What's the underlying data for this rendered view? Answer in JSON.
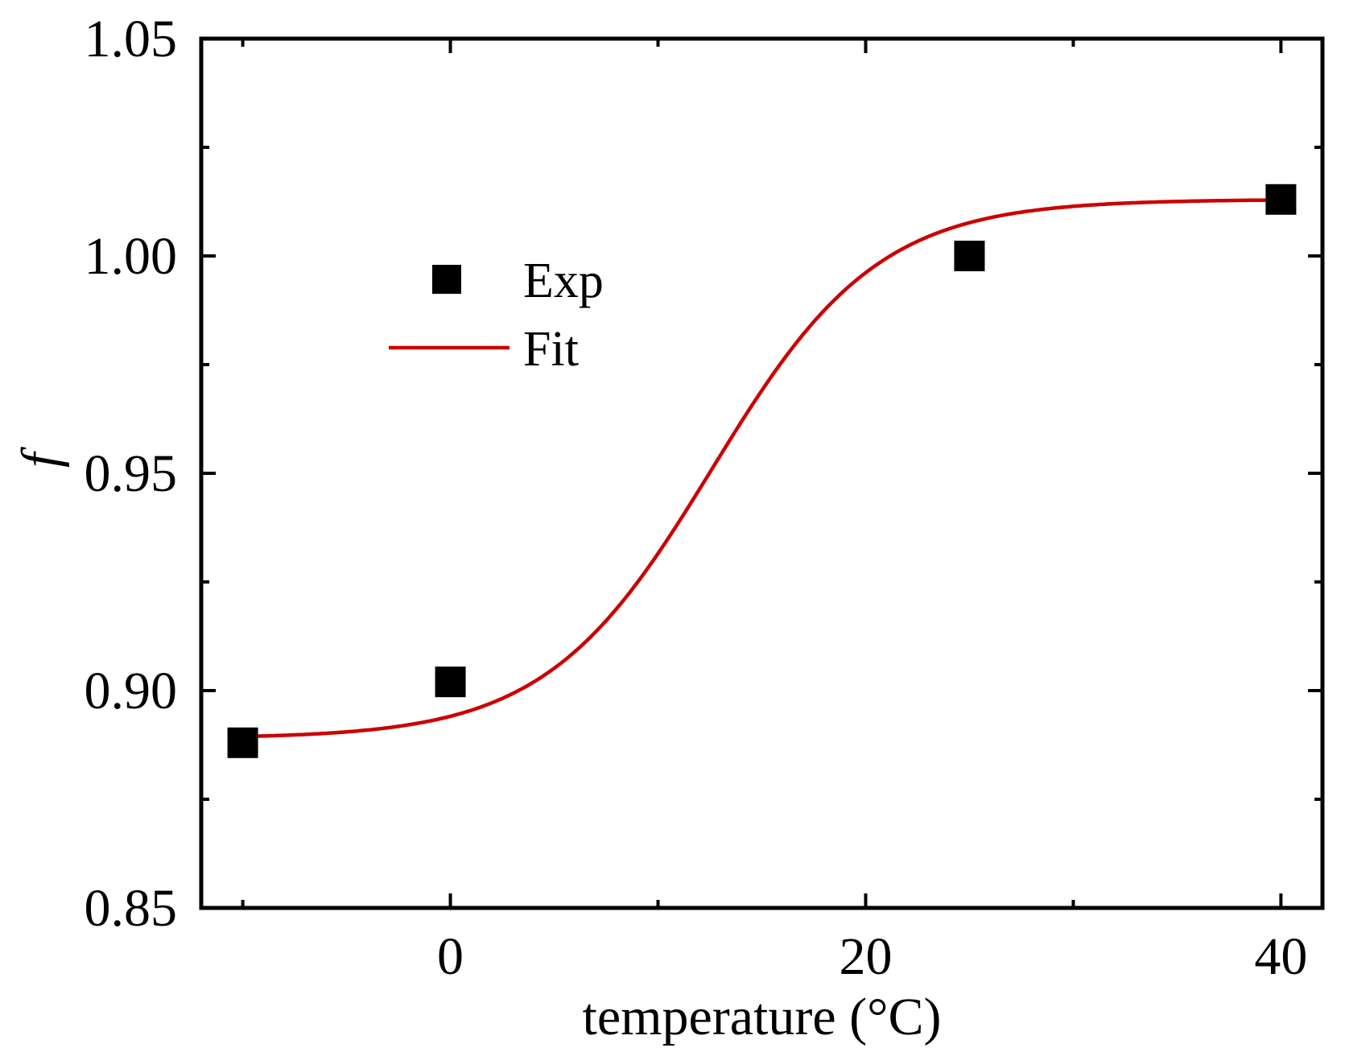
{
  "chart_data": {
    "type": "scatter",
    "title": "",
    "xlabel": "temperature (°C)",
    "ylabel": "f",
    "xlim": [
      -12,
      42
    ],
    "ylim": [
      0.85,
      1.05
    ],
    "x_major_ticks": [
      0,
      20,
      40
    ],
    "x_tick_labels": [
      "0",
      "20",
      "40"
    ],
    "x_minor_ticks": [
      -10,
      10,
      30
    ],
    "y_major_ticks": [
      0.85,
      0.9,
      0.95,
      1.0,
      1.05
    ],
    "y_tick_labels": [
      "0.85",
      "0.90",
      "0.95",
      "1.00",
      "1.05"
    ],
    "y_minor_ticks": [
      0.875,
      0.925,
      0.975,
      1.025
    ],
    "grid": false,
    "legend_position": "upper-left",
    "series": [
      {
        "name": "Exp",
        "kind": "markers",
        "marker": "square",
        "color": "#000000",
        "x": [
          -10,
          0,
          25,
          40
        ],
        "y": [
          0.888,
          0.902,
          1.0,
          1.013
        ]
      },
      {
        "name": "Fit",
        "kind": "line",
        "color": "#cc0000",
        "model": "sigmoid",
        "params": {
          "bottom": 0.889,
          "top": 1.013,
          "x0": 12.6,
          "width": 4.0
        },
        "x_range": [
          -10,
          40
        ]
      }
    ]
  }
}
